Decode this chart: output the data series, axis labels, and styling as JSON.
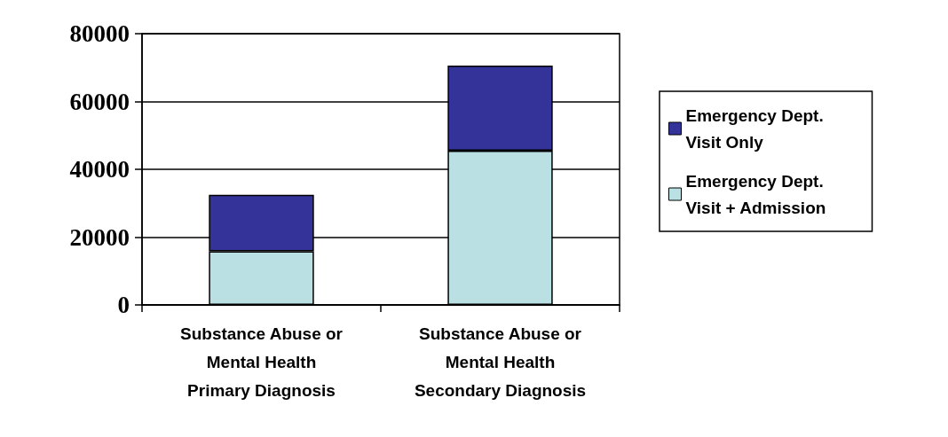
{
  "chart_data": {
    "type": "bar",
    "stacked": true,
    "categories": [
      "Substance Abuse or\nMental Health\nPrimary Diagnosis",
      "Substance Abuse or\nMental Health\nSecondary Diagnosis"
    ],
    "series": [
      {
        "name": "Emergency Dept. Visit + Admission",
        "color": "#bae0e4",
        "values": [
          15800,
          45500
        ]
      },
      {
        "name": "Emergency Dept. Visit Only",
        "color": "#333399",
        "values": [
          16700,
          25100
        ]
      }
    ],
    "ylim": [
      0,
      80000
    ],
    "yticks": [
      0,
      20000,
      40000,
      60000,
      80000
    ],
    "grid": "y",
    "legend": "right"
  }
}
